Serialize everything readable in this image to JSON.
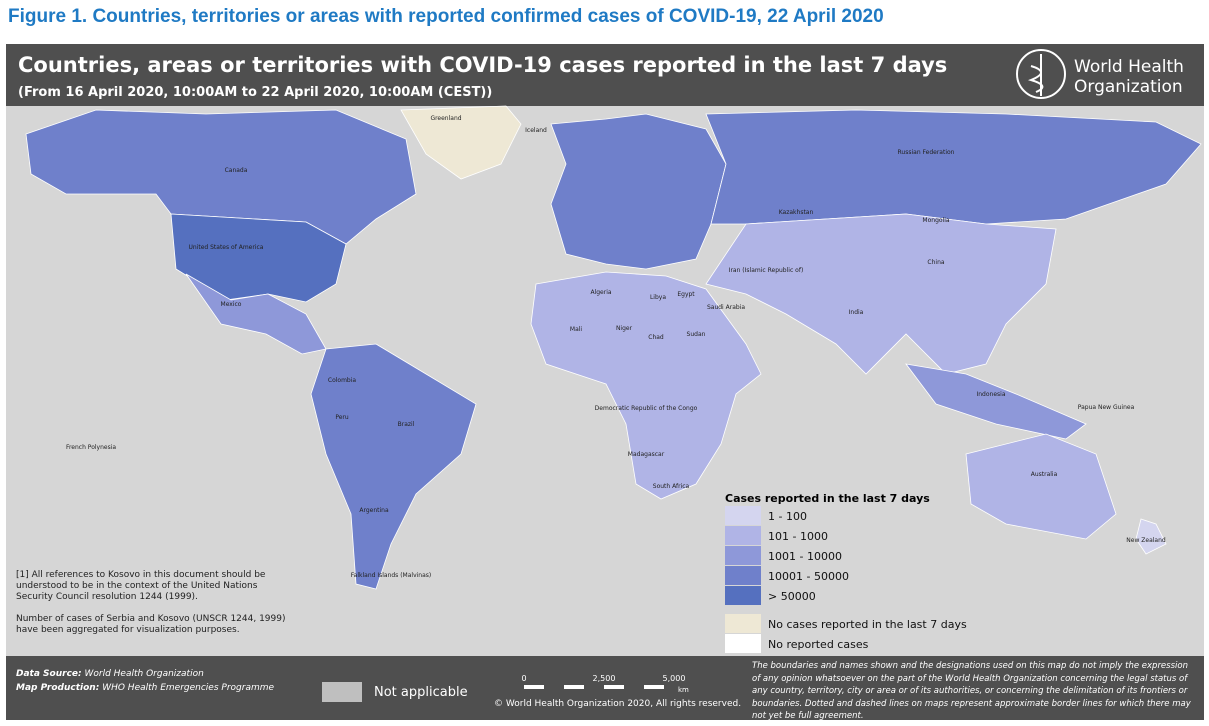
{
  "caption": "Figure 1. Countries, territories or areas with reported confirmed cases of COVID-19, 22 April 2020",
  "header": {
    "title": "Countries, areas or territories with COVID-19 cases reported in the last 7 days",
    "subtitle": "(From 16 April 2020, 10:00AM  to 22 April 2020, 10:00AM (CEST))",
    "logo": [
      "World Health",
      "Organization"
    ]
  },
  "map": {
    "labels": [
      "Greenland",
      "Canada",
      "United States of America",
      "Mexico",
      "Brazil",
      "Argentina",
      "Peru",
      "Colombia",
      "Russian Federation",
      "Kazakhstan",
      "Mongolia",
      "China",
      "India",
      "Australia",
      "Algeria",
      "Libya",
      "Egypt",
      "Mali",
      "Niger",
      "Chad",
      "Sudan",
      "Democratic Republic of the Congo",
      "South Africa",
      "Madagascar",
      "Saudi Arabia",
      "Iran (Islamic Republic of)",
      "Indonesia",
      "Papua New Guinea",
      "New Zealand",
      "Iceland",
      "French Polynesia",
      "Falkland Islands (Malvinas)"
    ]
  },
  "legend": {
    "title": "Cases reported in the last 7 days",
    "items": [
      "1 - 100",
      "101 - 1000",
      "1001 - 10000",
      "10001 - 50000",
      "> 50000",
      "No cases reported in the last 7 days",
      "No reported cases"
    ]
  },
  "notes": [
    "[1] All references to Kosovo in this document should be understood to be in the context of the United Nations Security Council resolution 1244 (1999).",
    "Number of cases of Serbia and Kosovo (UNSCR 1244, 1999) have been aggregated for visualization purposes."
  ],
  "footer": {
    "data_source_label": "Data Source:",
    "data_source": "World Health Organization",
    "map_production_label": "Map Production:",
    "map_production": "WHO Health Emergencies Programme",
    "not_applicable": "Not applicable",
    "scale": [
      "0",
      "2,500",
      "5,000",
      "km"
    ],
    "copyright": "© World Health Organization  2020,  All rights reserved.",
    "disclaimer": "The boundaries and names shown and the designations used on this map do not imply the expression of any opinion whatsoever on the part of the World Health Organization concerning the legal status of any country, territory, city or area or of its authorities, or concerning the delimitation of its frontiers or boundaries. Dotted and dashed lines on maps represent approximate border lines for which there may not yet be full agreement."
  }
}
